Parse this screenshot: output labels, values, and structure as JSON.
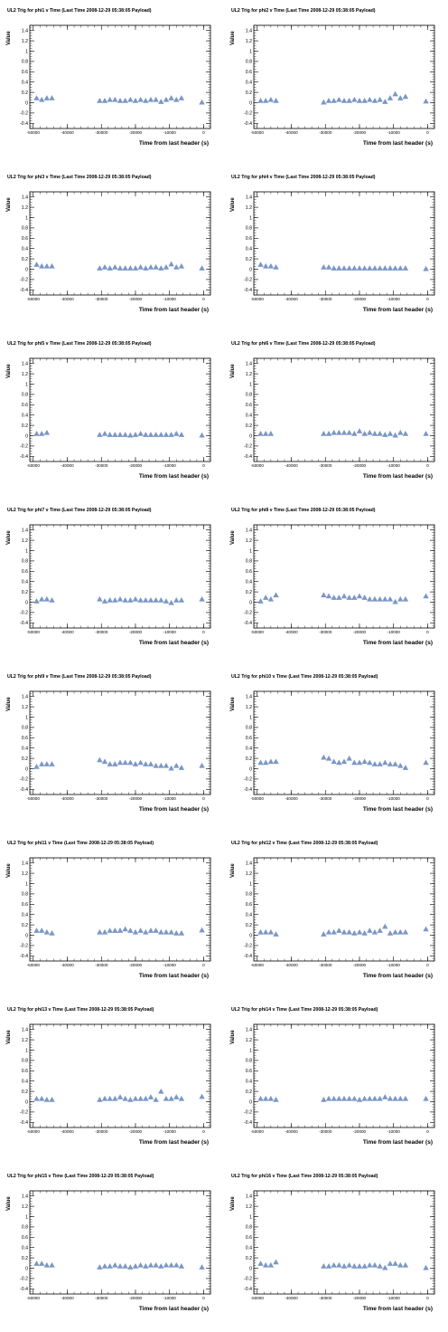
{
  "marker_color": "#7b97c6",
  "chart_data": [
    {
      "type": "scatter",
      "title": "UL2 Trig for phi1 v Time (Last Time 2008-12-29 05:38:05 Payload)",
      "xlabel": "Time from last header (s)",
      "ylabel": "Value",
      "xlim": [
        -51000,
        2000
      ],
      "ylim": [
        -0.5,
        1.5
      ],
      "x": [
        -49000,
        -47500,
        -46000,
        -44500,
        -30500,
        -29000,
        -27500,
        -26000,
        -24500,
        -23000,
        -21500,
        -20000,
        -18500,
        -17000,
        -15500,
        -14000,
        -12500,
        -11000,
        -9500,
        -8000,
        -6500,
        -500
      ],
      "y": [
        0.09,
        0.06,
        0.09,
        0.09,
        0.04,
        0.04,
        0.06,
        0.06,
        0.04,
        0.04,
        0.06,
        0.04,
        0.06,
        0.04,
        0.06,
        0.06,
        0.02,
        0.06,
        0.09,
        0.06,
        0.09,
        0.01
      ]
    },
    {
      "type": "scatter",
      "title": "UL2 Trig for phi2 v Time (Last Time 2008-12-29 05:38:05 Payload)",
      "xlabel": "Time from last header (s)",
      "ylabel": "Value",
      "xlim": [
        -51000,
        2000
      ],
      "ylim": [
        -0.5,
        1.5
      ],
      "x": [
        -49000,
        -47500,
        -46000,
        -44500,
        -30500,
        -29000,
        -27500,
        -26000,
        -24500,
        -23000,
        -21500,
        -20000,
        -18500,
        -17000,
        -15500,
        -14000,
        -12500,
        -11000,
        -9500,
        -8000,
        -6500,
        -500
      ],
      "y": [
        0.04,
        0.04,
        0.06,
        0.04,
        0.01,
        0.04,
        0.04,
        0.06,
        0.04,
        0.04,
        0.06,
        0.04,
        0.04,
        0.06,
        0.04,
        0.06,
        0.02,
        0.09,
        0.17,
        0.09,
        0.12,
        0.03
      ]
    },
    {
      "type": "scatter",
      "title": "UL2 Trig for phi3 v Time (Last Time 2008-12-29 05:38:05 Payload)",
      "xlabel": "Time from last header (s)",
      "ylabel": "Value",
      "xlim": [
        -51000,
        2000
      ],
      "ylim": [
        -0.5,
        1.5
      ],
      "x": [
        -49000,
        -47500,
        -46000,
        -44500,
        -30500,
        -29000,
        -27500,
        -26000,
        -24500,
        -23000,
        -21500,
        -20000,
        -18500,
        -17000,
        -15500,
        -14000,
        -12500,
        -11000,
        -9500,
        -8000,
        -6500,
        -500
      ],
      "y": [
        0.09,
        0.06,
        0.06,
        0.06,
        0.02,
        0.04,
        0.02,
        0.04,
        0.02,
        0.02,
        0.02,
        0.02,
        0.04,
        0.02,
        0.04,
        0.04,
        0.02,
        0.04,
        0.1,
        0.04,
        0.06,
        0.02
      ]
    },
    {
      "type": "scatter",
      "title": "UL2 Trig for phi4 v Time (Last Time 2008-12-29 05:38:05 Payload)",
      "xlabel": "Time from last header (s)",
      "ylabel": "Value",
      "xlim": [
        -51000,
        2000
      ],
      "ylim": [
        -0.5,
        1.5
      ],
      "x": [
        -49000,
        -47500,
        -46000,
        -44500,
        -30500,
        -29000,
        -27500,
        -26000,
        -24500,
        -23000,
        -21500,
        -20000,
        -18500,
        -17000,
        -15500,
        -14000,
        -12500,
        -11000,
        -9500,
        -8000,
        -6500,
        -500
      ],
      "y": [
        0.09,
        0.06,
        0.06,
        0.04,
        0.04,
        0.04,
        0.02,
        0.02,
        0.02,
        0.02,
        0.02,
        0.02,
        0.02,
        0.02,
        0.02,
        0.02,
        0.02,
        0.02,
        0.02,
        0.02,
        0.02,
        0.01
      ]
    },
    {
      "type": "scatter",
      "title": "UL2 Trig for phi5 v Time (Last Time 2008-12-29 05:38:05 Payload)",
      "xlabel": "Time from last header (s)",
      "ylabel": "Value",
      "xlim": [
        -51000,
        2000
      ],
      "ylim": [
        -0.5,
        1.5
      ],
      "x": [
        -49000,
        -47500,
        -46000,
        -30500,
        -29000,
        -27500,
        -26000,
        -24500,
        -23000,
        -21500,
        -20000,
        -18500,
        -17000,
        -15500,
        -14000,
        -12500,
        -11000,
        -9500,
        -8000,
        -6500,
        -500
      ],
      "y": [
        0.04,
        0.04,
        0.06,
        0.02,
        0.04,
        0.02,
        0.02,
        0.02,
        0.02,
        0.01,
        0.02,
        0.04,
        0.02,
        0.02,
        0.02,
        0.02,
        0.02,
        0.02,
        0.04,
        0.02,
        0.01
      ]
    },
    {
      "type": "scatter",
      "title": "UL2 Trig for phi6 v Time (Last Time 2008-12-29 05:38:05 Payload)",
      "xlabel": "Time from last header (s)",
      "ylabel": "Value",
      "xlim": [
        -51000,
        2000
      ],
      "ylim": [
        -0.5,
        1.5
      ],
      "x": [
        -49000,
        -47500,
        -46000,
        -30500,
        -29000,
        -27500,
        -26000,
        -24500,
        -23000,
        -21500,
        -20000,
        -18500,
        -17000,
        -15500,
        -14000,
        -12500,
        -11000,
        -9500,
        -8000,
        -6500,
        -500
      ],
      "y": [
        0.04,
        0.04,
        0.04,
        0.04,
        0.04,
        0.06,
        0.06,
        0.06,
        0.06,
        0.04,
        0.09,
        0.04,
        0.06,
        0.04,
        0.04,
        0.02,
        0.04,
        0.01,
        0.06,
        0.04,
        0.04
      ]
    },
    {
      "type": "scatter",
      "title": "UL2 Trig for phi7 v Time (Last Time 2008-12-29 05:38:05 Payload)",
      "xlabel": "Time from last header (s)",
      "ylabel": "Value",
      "xlim": [
        -51000,
        2000
      ],
      "ylim": [
        -0.5,
        1.5
      ],
      "x": [
        -49000,
        -47500,
        -46000,
        -44500,
        -30500,
        -29000,
        -27500,
        -26000,
        -24500,
        -23000,
        -21500,
        -20000,
        -18500,
        -17000,
        -15500,
        -14000,
        -12500,
        -11000,
        -9500,
        -8000,
        -6500,
        -500
      ],
      "y": [
        0.02,
        0.06,
        0.06,
        0.04,
        0.06,
        0.02,
        0.04,
        0.04,
        0.06,
        0.04,
        0.04,
        0.06,
        0.04,
        0.04,
        0.04,
        0.04,
        0.04,
        0.02,
        -0.01,
        0.04,
        0.04,
        0.06
      ]
    },
    {
      "type": "scatter",
      "title": "UL2 Trig for phi8 v Time (Last Time 2008-12-29 05:38:05 Payload)",
      "xlabel": "Time from last header (s)",
      "ylabel": "Value",
      "xlim": [
        -51000,
        2000
      ],
      "ylim": [
        -0.5,
        1.5
      ],
      "x": [
        -49000,
        -47500,
        -46000,
        -44500,
        -30500,
        -29000,
        -27500,
        -26000,
        -24500,
        -23000,
        -21500,
        -20000,
        -18500,
        -17000,
        -15500,
        -14000,
        -12500,
        -11000,
        -9500,
        -8000,
        -6500,
        -500
      ],
      "y": [
        0.02,
        0.09,
        0.06,
        0.14,
        0.14,
        0.12,
        0.09,
        0.09,
        0.12,
        0.09,
        0.09,
        0.12,
        0.09,
        0.06,
        0.06,
        0.06,
        0.06,
        0.06,
        0.01,
        0.06,
        0.06,
        0.12
      ]
    },
    {
      "type": "scatter",
      "title": "UL2 Trig for phi9 v Time (Last Time 2008-12-29 05:38:05 Payload)",
      "xlabel": "Time from last header (s)",
      "ylabel": "Value",
      "xlim": [
        -51000,
        2000
      ],
      "ylim": [
        -0.5,
        1.5
      ],
      "x": [
        -49000,
        -47500,
        -46000,
        -44500,
        -30500,
        -29000,
        -27500,
        -26000,
        -24500,
        -23000,
        -21500,
        -20000,
        -18500,
        -17000,
        -15500,
        -14000,
        -12500,
        -11000,
        -9500,
        -8000,
        -6500,
        -500
      ],
      "y": [
        0.04,
        0.09,
        0.09,
        0.09,
        0.17,
        0.14,
        0.09,
        0.09,
        0.12,
        0.12,
        0.12,
        0.09,
        0.12,
        0.09,
        0.09,
        0.06,
        0.06,
        0.06,
        0.01,
        0.06,
        0.02,
        0.06
      ]
    },
    {
      "type": "scatter",
      "title": "UL2 Trig for phi10 v Time (Last Time 2008-12-29 05:38:05 Payload)",
      "xlabel": "Time from last header (s)",
      "ylabel": "Value",
      "xlim": [
        -51000,
        2000
      ],
      "ylim": [
        -0.5,
        1.5
      ],
      "x": [
        -49000,
        -47500,
        -46000,
        -44500,
        -30500,
        -29000,
        -27500,
        -26000,
        -24500,
        -23000,
        -21500,
        -20000,
        -18500,
        -17000,
        -15500,
        -14000,
        -12500,
        -11000,
        -9500,
        -8000,
        -6500,
        -500
      ],
      "y": [
        0.12,
        0.12,
        0.14,
        0.14,
        0.22,
        0.2,
        0.14,
        0.12,
        0.14,
        0.2,
        0.12,
        0.12,
        0.14,
        0.12,
        0.09,
        0.09,
        0.12,
        0.09,
        0.09,
        0.06,
        0.02,
        0.12
      ]
    },
    {
      "type": "scatter",
      "title": "UL2 Trig for phi11 v Time (Last Time 2008-12-29 05:38:05 Payload)",
      "xlabel": "Time from last header (s)",
      "ylabel": "Value",
      "xlim": [
        -51000,
        2000
      ],
      "ylim": [
        -0.5,
        1.5
      ],
      "x": [
        -49000,
        -47500,
        -46000,
        -44500,
        -30500,
        -29000,
        -27500,
        -26000,
        -24500,
        -23000,
        -21500,
        -20000,
        -18500,
        -17000,
        -15500,
        -14000,
        -12500,
        -11000,
        -9500,
        -8000,
        -6500,
        -500
      ],
      "y": [
        0.09,
        0.09,
        0.06,
        0.04,
        0.06,
        0.06,
        0.09,
        0.09,
        0.09,
        0.12,
        0.09,
        0.06,
        0.09,
        0.06,
        0.09,
        0.09,
        0.06,
        0.06,
        0.06,
        0.04,
        0.04,
        0.1
      ]
    },
    {
      "type": "scatter",
      "title": "UL2 Trig for phi12 v Time (Last Time 2008-12-29 05:38:05 Payload)",
      "xlabel": "Time from last header (s)",
      "ylabel": "Value",
      "xlim": [
        -51000,
        2000
      ],
      "ylim": [
        -0.5,
        1.5
      ],
      "x": [
        -49000,
        -47500,
        -46000,
        -44500,
        -30500,
        -29000,
        -27500,
        -26000,
        -24500,
        -23000,
        -21500,
        -20000,
        -18500,
        -17000,
        -15500,
        -14000,
        -12500,
        -11000,
        -9500,
        -8000,
        -6500,
        -500
      ],
      "y": [
        0.06,
        0.06,
        0.06,
        0.02,
        0.02,
        0.06,
        0.06,
        0.09,
        0.06,
        0.06,
        0.04,
        0.06,
        0.04,
        0.09,
        0.06,
        0.09,
        0.17,
        0.04,
        0.06,
        0.06,
        0.06,
        0.12
      ]
    },
    {
      "type": "scatter",
      "title": "UL2 Trig for phi13 v Time (Last Time 2008-12-29 05:38:05 Payload)",
      "xlabel": "Time from last header (s)",
      "ylabel": "Value",
      "xlim": [
        -51000,
        2000
      ],
      "ylim": [
        -0.5,
        1.5
      ],
      "x": [
        -49000,
        -47500,
        -46000,
        -44500,
        -30500,
        -29000,
        -27500,
        -26000,
        -24500,
        -23000,
        -21500,
        -20000,
        -18500,
        -17000,
        -15500,
        -14000,
        -12500,
        -11000,
        -9500,
        -8000,
        -6500,
        -500
      ],
      "y": [
        0.06,
        0.06,
        0.04,
        0.04,
        0.04,
        0.06,
        0.06,
        0.06,
        0.09,
        0.06,
        0.04,
        0.06,
        0.06,
        0.06,
        0.09,
        0.04,
        0.2,
        0.06,
        0.06,
        0.09,
        0.06,
        0.1
      ]
    },
    {
      "type": "scatter",
      "title": "UL2 Trig for phi14 v Time (Last Time 2008-12-29 05:38:05 Payload)",
      "xlabel": "Time from last header (s)",
      "ylabel": "Value",
      "xlim": [
        -51000,
        2000
      ],
      "ylim": [
        -0.5,
        1.5
      ],
      "x": [
        -49000,
        -47500,
        -46000,
        -44500,
        -30500,
        -29000,
        -27500,
        -26000,
        -24500,
        -23000,
        -21500,
        -20000,
        -18500,
        -17000,
        -15500,
        -14000,
        -12500,
        -11000,
        -9500,
        -8000,
        -6500,
        -500
      ],
      "y": [
        0.06,
        0.06,
        0.06,
        0.04,
        0.04,
        0.06,
        0.06,
        0.06,
        0.06,
        0.06,
        0.06,
        0.04,
        0.06,
        0.06,
        0.06,
        0.06,
        0.09,
        0.06,
        0.06,
        0.06,
        0.06,
        0.06
      ]
    },
    {
      "type": "scatter",
      "title": "UL2 Trig for phi15 v Time (Last Time 2008-12-29 05:38:05 Payload)",
      "xlabel": "Time from last header (s)",
      "ylabel": "Value",
      "xlim": [
        -51000,
        2000
      ],
      "ylim": [
        -0.5,
        1.5
      ],
      "x": [
        -49000,
        -47500,
        -46000,
        -44500,
        -30500,
        -29000,
        -27500,
        -26000,
        -24500,
        -23000,
        -21500,
        -20000,
        -18500,
        -17000,
        -15500,
        -14000,
        -12500,
        -11000,
        -9500,
        -8000,
        -6500,
        -500
      ],
      "y": [
        0.09,
        0.09,
        0.06,
        0.06,
        0.02,
        0.04,
        0.04,
        0.06,
        0.04,
        0.04,
        0.02,
        0.04,
        0.06,
        0.04,
        0.06,
        0.06,
        0.04,
        0.06,
        0.06,
        0.06,
        0.04,
        0.02
      ]
    },
    {
      "type": "scatter",
      "title": "UL2 Trig for phi16 v Time (Last Time 2008-12-29 05:38:05 Payload)",
      "xlabel": "Time from last header (s)",
      "ylabel": "Value",
      "xlim": [
        -51000,
        2000
      ],
      "ylim": [
        -0.5,
        1.5
      ],
      "x": [
        -49000,
        -47500,
        -46000,
        -44500,
        -30500,
        -29000,
        -27500,
        -26000,
        -24500,
        -23000,
        -21500,
        -20000,
        -18500,
        -17000,
        -15500,
        -14000,
        -12500,
        -11000,
        -9500,
        -8000,
        -6500,
        -500
      ],
      "y": [
        0.09,
        0.06,
        0.06,
        0.12,
        0.04,
        0.04,
        0.06,
        0.06,
        0.04,
        0.06,
        0.04,
        0.04,
        0.04,
        0.06,
        0.06,
        0.04,
        0.01,
        0.09,
        0.09,
        0.06,
        0.06,
        0.01
      ]
    }
  ],
  "axis": {
    "y_ticks": [
      -0.4,
      -0.2,
      0,
      0.2,
      0.4,
      0.6,
      0.8,
      1,
      1.2,
      1.4
    ],
    "y_tick_labels": [
      "-0.4",
      "-0.2",
      "0",
      "0.2",
      "0.4",
      "0.6",
      "0.8",
      "1",
      "1.2",
      "1.4"
    ],
    "x_ticks": [
      -50000,
      -40000,
      -30000,
      -20000,
      -10000,
      0
    ],
    "x_tick_labels": [
      "-50000",
      "-40000",
      "-30000",
      "-20000",
      "-10000",
      "0"
    ]
  }
}
